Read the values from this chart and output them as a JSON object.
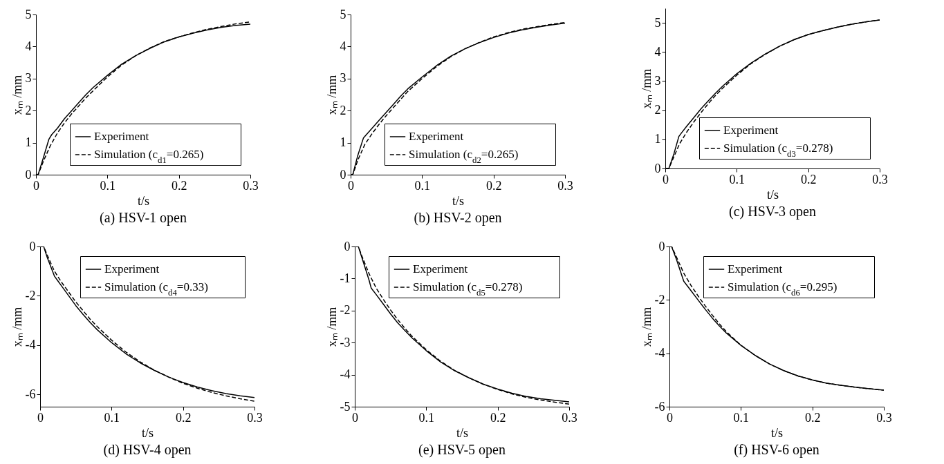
{
  "chart_data": [
    {
      "type": "line",
      "title": "(a) HSV-1 open",
      "xlabel": "t/s",
      "ylabel": "xₘ /mm",
      "xlim": [
        0,
        0.3
      ],
      "xticks": [
        0,
        0.1,
        0.2,
        0.3
      ],
      "ylim": [
        0,
        5
      ],
      "yticks": [
        0,
        1,
        2,
        3,
        4,
        5
      ],
      "legend": "bottom right",
      "series": [
        {
          "name": "Experiment",
          "color": "#000000",
          "line_style": "solid",
          "x": [
            0,
            0.003,
            0.01,
            0.018,
            0.022,
            0.03,
            0.04,
            0.05,
            0.06,
            0.07,
            0.08,
            0.1,
            0.12,
            0.14,
            0.16,
            0.18,
            0.2,
            0.22,
            0.24,
            0.26,
            0.28,
            0.3
          ],
          "values": [
            0,
            0,
            0.5,
            1.1,
            1.25,
            1.45,
            1.75,
            2.0,
            2.25,
            2.5,
            2.72,
            3.1,
            3.45,
            3.72,
            3.95,
            4.15,
            4.3,
            4.42,
            4.52,
            4.6,
            4.66,
            4.7
          ]
        },
        {
          "name": "Simulation (c$_{d1}$=0.265)",
          "color": "#000000",
          "line_style": "dashed",
          "x": [
            0,
            0.003,
            0.01,
            0.02,
            0.03,
            0.04,
            0.05,
            0.06,
            0.07,
            0.08,
            0.1,
            0.12,
            0.14,
            0.16,
            0.18,
            0.2,
            0.22,
            0.24,
            0.26,
            0.28,
            0.3
          ],
          "values": [
            0,
            0,
            0.4,
            0.9,
            1.3,
            1.62,
            1.9,
            2.15,
            2.4,
            2.62,
            3.05,
            3.42,
            3.72,
            3.96,
            4.16,
            4.3,
            4.43,
            4.54,
            4.63,
            4.71,
            4.77
          ]
        }
      ]
    },
    {
      "type": "line",
      "title": "(b) HSV-2 open",
      "xlabel": "t/s",
      "ylabel": "xₘ /mm",
      "xlim": [
        0,
        0.3
      ],
      "xticks": [
        0,
        0.1,
        0.2,
        0.3
      ],
      "ylim": [
        0,
        5
      ],
      "yticks": [
        0,
        1,
        2,
        3,
        4,
        5
      ],
      "legend": "bottom right",
      "series": [
        {
          "name": "Experiment",
          "color": "#000000",
          "line_style": "solid",
          "x": [
            0,
            0.003,
            0.01,
            0.018,
            0.022,
            0.03,
            0.04,
            0.05,
            0.06,
            0.07,
            0.08,
            0.1,
            0.12,
            0.14,
            0.16,
            0.18,
            0.2,
            0.22,
            0.24,
            0.26,
            0.28,
            0.3
          ],
          "values": [
            0,
            0,
            0.6,
            1.15,
            1.25,
            1.45,
            1.7,
            1.95,
            2.2,
            2.45,
            2.68,
            3.05,
            3.4,
            3.7,
            3.93,
            4.12,
            4.28,
            4.42,
            4.52,
            4.6,
            4.67,
            4.73
          ]
        },
        {
          "name": "Simulation (c$_{d2}$=0.265)",
          "color": "#000000",
          "line_style": "dashed",
          "x": [
            0,
            0.003,
            0.01,
            0.02,
            0.03,
            0.04,
            0.05,
            0.06,
            0.07,
            0.08,
            0.1,
            0.12,
            0.14,
            0.16,
            0.18,
            0.2,
            0.22,
            0.24,
            0.26,
            0.28,
            0.3
          ],
          "values": [
            0,
            0,
            0.45,
            0.95,
            1.28,
            1.58,
            1.85,
            2.1,
            2.35,
            2.6,
            3.0,
            3.37,
            3.68,
            3.93,
            4.13,
            4.3,
            4.43,
            4.54,
            4.62,
            4.69,
            4.75
          ]
        }
      ]
    },
    {
      "type": "line",
      "title": "(c) HSV-3 open",
      "xlabel": "t/s",
      "ylabel": "xₘ /mm",
      "xlim": [
        0,
        0.3
      ],
      "xticks": [
        0,
        0.1,
        0.2,
        0.3
      ],
      "ylim": [
        0,
        5.5
      ],
      "yticks": [
        0,
        1,
        2,
        3,
        4,
        5
      ],
      "legend": "bottom right",
      "series": [
        {
          "name": "Experiment",
          "color": "#000000",
          "line_style": "solid",
          "x": [
            0,
            0.005,
            0.012,
            0.019,
            0.022,
            0.03,
            0.04,
            0.05,
            0.06,
            0.07,
            0.08,
            0.1,
            0.12,
            0.14,
            0.16,
            0.18,
            0.2,
            0.22,
            0.24,
            0.26,
            0.28,
            0.3
          ],
          "values": [
            0,
            0,
            0.5,
            1.1,
            1.2,
            1.45,
            1.75,
            2.05,
            2.32,
            2.58,
            2.82,
            3.25,
            3.62,
            3.93,
            4.2,
            4.42,
            4.6,
            4.73,
            4.85,
            4.95,
            5.03,
            5.1
          ]
        },
        {
          "name": "Simulation (c$_{d3}$=0.278)",
          "color": "#000000",
          "line_style": "dashed",
          "x": [
            0,
            0.005,
            0.012,
            0.02,
            0.03,
            0.04,
            0.05,
            0.06,
            0.07,
            0.08,
            0.1,
            0.12,
            0.14,
            0.16,
            0.18,
            0.2,
            0.22,
            0.24,
            0.26,
            0.28,
            0.3
          ],
          "values": [
            0,
            0,
            0.4,
            0.85,
            1.25,
            1.6,
            1.92,
            2.22,
            2.5,
            2.75,
            3.2,
            3.6,
            3.92,
            4.2,
            4.42,
            4.6,
            4.73,
            4.85,
            4.95,
            5.03,
            5.1
          ]
        }
      ]
    },
    {
      "type": "line",
      "title": "(d) HSV-4 open",
      "xlabel": "t/s",
      "ylabel": "xₘ /mm",
      "xlim": [
        0,
        0.3
      ],
      "xticks": [
        0,
        0.1,
        0.2,
        0.3
      ],
      "ylim": [
        -6.5,
        0
      ],
      "yticks": [
        -6,
        -4,
        -2,
        0
      ],
      "legend": "top right",
      "series": [
        {
          "name": "Experiment",
          "color": "#000000",
          "line_style": "solid",
          "x": [
            0,
            0.005,
            0.01,
            0.02,
            0.025,
            0.03,
            0.04,
            0.05,
            0.06,
            0.07,
            0.08,
            0.1,
            0.12,
            0.14,
            0.16,
            0.18,
            0.2,
            0.22,
            0.24,
            0.26,
            0.28,
            0.3
          ],
          "values": [
            0,
            0,
            -0.45,
            -1.2,
            -1.4,
            -1.6,
            -2.0,
            -2.4,
            -2.75,
            -3.08,
            -3.38,
            -3.9,
            -4.35,
            -4.72,
            -5.03,
            -5.3,
            -5.52,
            -5.7,
            -5.85,
            -5.97,
            -6.06,
            -6.13
          ]
        },
        {
          "name": "Simulation (c$_{d4}$=0.33)",
          "color": "#000000",
          "line_style": "dashed",
          "x": [
            0,
            0.005,
            0.01,
            0.02,
            0.03,
            0.04,
            0.05,
            0.06,
            0.07,
            0.08,
            0.1,
            0.12,
            0.14,
            0.16,
            0.18,
            0.2,
            0.22,
            0.24,
            0.26,
            0.28,
            0.3
          ],
          "values": [
            0,
            0,
            -0.35,
            -1.0,
            -1.45,
            -1.85,
            -2.25,
            -2.6,
            -2.95,
            -3.25,
            -3.8,
            -4.28,
            -4.68,
            -5.02,
            -5.3,
            -5.55,
            -5.75,
            -5.92,
            -6.06,
            -6.18,
            -6.28
          ]
        }
      ]
    },
    {
      "type": "line",
      "title": "(e) HSV-5 open",
      "xlabel": "t/s",
      "ylabel": "xₘ /mm",
      "xlim": [
        0,
        0.3
      ],
      "xticks": [
        0,
        0.1,
        0.2,
        0.3
      ],
      "ylim": [
        -5,
        0
      ],
      "yticks": [
        -5,
        -4,
        -3,
        -2,
        -1,
        0
      ],
      "legend": "top right",
      "series": [
        {
          "name": "Experiment",
          "color": "#000000",
          "line_style": "solid",
          "x": [
            0,
            0.005,
            0.01,
            0.02,
            0.023,
            0.03,
            0.04,
            0.05,
            0.06,
            0.07,
            0.08,
            0.1,
            0.12,
            0.14,
            0.16,
            0.18,
            0.2,
            0.22,
            0.24,
            0.26,
            0.28,
            0.3
          ],
          "values": [
            0,
            0,
            -0.35,
            -1.05,
            -1.3,
            -1.5,
            -1.8,
            -2.1,
            -2.38,
            -2.62,
            -2.85,
            -3.25,
            -3.6,
            -3.88,
            -4.1,
            -4.3,
            -4.45,
            -4.58,
            -4.68,
            -4.75,
            -4.8,
            -4.85
          ]
        },
        {
          "name": "Simulation (c$_{d5}$=0.278)",
          "color": "#000000",
          "line_style": "dashed",
          "x": [
            0,
            0.005,
            0.01,
            0.02,
            0.03,
            0.04,
            0.05,
            0.06,
            0.07,
            0.08,
            0.1,
            0.12,
            0.14,
            0.16,
            0.18,
            0.2,
            0.22,
            0.24,
            0.26,
            0.28,
            0.3
          ],
          "values": [
            0,
            0,
            -0.3,
            -0.85,
            -1.3,
            -1.65,
            -1.98,
            -2.28,
            -2.55,
            -2.8,
            -3.22,
            -3.58,
            -3.87,
            -4.1,
            -4.3,
            -4.46,
            -4.6,
            -4.71,
            -4.79,
            -4.86,
            -4.92
          ]
        }
      ]
    },
    {
      "type": "line",
      "title": "(f) HSV-6 open",
      "xlabel": "t/s",
      "ylabel": "xₘ /mm",
      "xlim": [
        0,
        0.3
      ],
      "xticks": [
        0,
        0.1,
        0.2,
        0.3
      ],
      "ylim": [
        -6,
        0
      ],
      "yticks": [
        -6,
        -4,
        -2,
        0
      ],
      "legend": "top right",
      "series": [
        {
          "name": "Experiment",
          "color": "#000000",
          "line_style": "solid",
          "x": [
            0,
            0.003,
            0.01,
            0.02,
            0.03,
            0.04,
            0.05,
            0.06,
            0.07,
            0.08,
            0.1,
            0.12,
            0.14,
            0.16,
            0.18,
            0.2,
            0.22,
            0.24,
            0.26,
            0.28,
            0.3
          ],
          "values": [
            0,
            0,
            -0.5,
            -1.3,
            -1.65,
            -2.0,
            -2.35,
            -2.68,
            -2.98,
            -3.25,
            -3.7,
            -4.08,
            -4.4,
            -4.65,
            -4.85,
            -5.0,
            -5.12,
            -5.2,
            -5.27,
            -5.33,
            -5.38
          ]
        },
        {
          "name": "Simulation (c$_{d6}$=0.295)",
          "color": "#000000",
          "line_style": "dashed",
          "x": [
            0,
            0.003,
            0.01,
            0.02,
            0.03,
            0.04,
            0.05,
            0.06,
            0.07,
            0.08,
            0.1,
            0.12,
            0.14,
            0.16,
            0.18,
            0.2,
            0.22,
            0.24,
            0.26,
            0.28,
            0.3
          ],
          "values": [
            0,
            0,
            -0.4,
            -1.0,
            -1.45,
            -1.85,
            -2.22,
            -2.57,
            -2.9,
            -3.2,
            -3.7,
            -4.08,
            -4.4,
            -4.65,
            -4.85,
            -5.0,
            -5.12,
            -5.2,
            -5.27,
            -5.33,
            -5.38
          ]
        }
      ]
    }
  ]
}
